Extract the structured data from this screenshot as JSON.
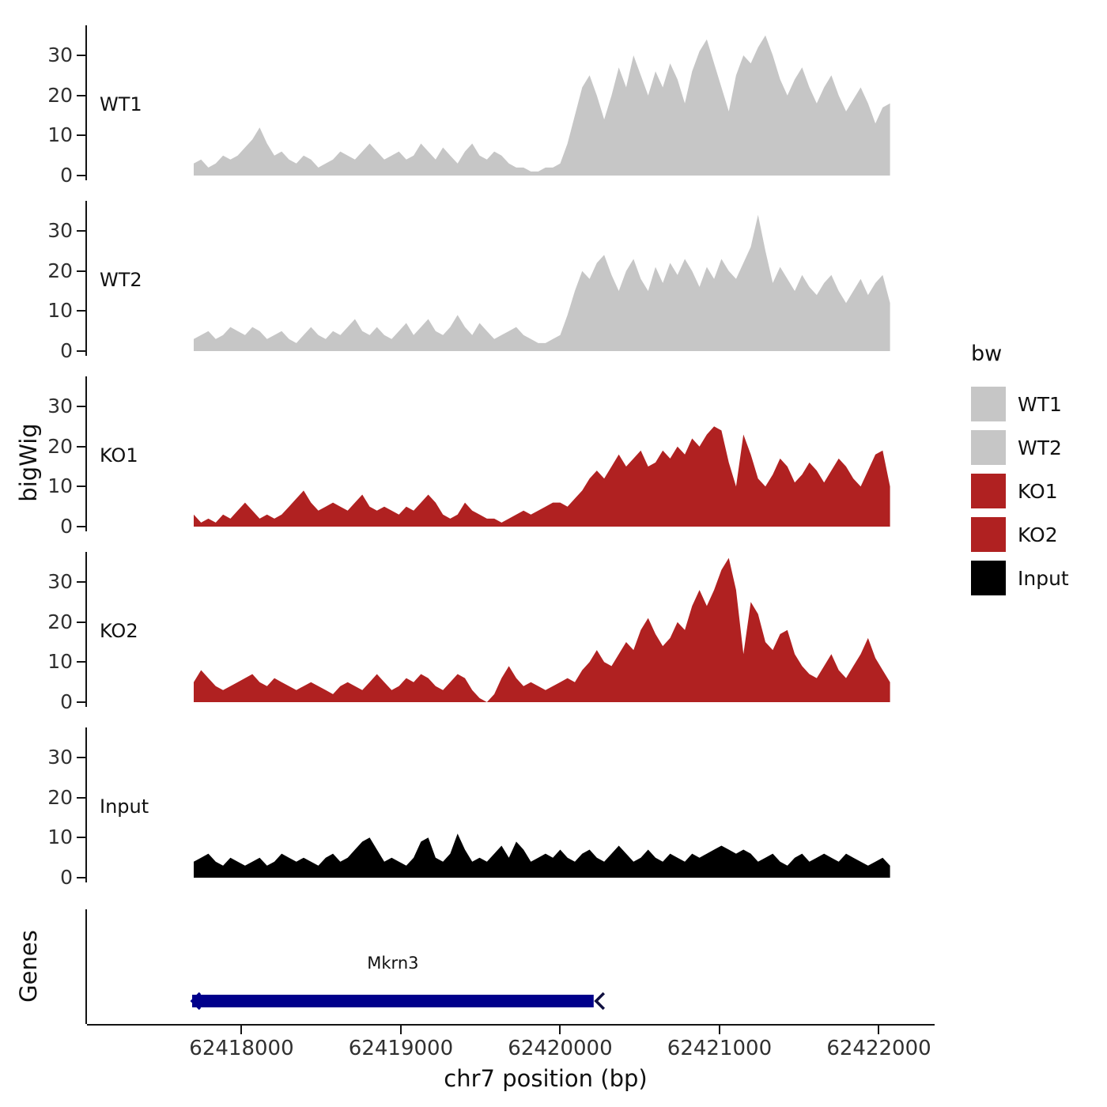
{
  "ylabel_tracks": "bigWig",
  "ylabel_genes": "Genes",
  "xlabel": "chr7 position (bp)",
  "legend": {
    "title": "bw",
    "entries": [
      {
        "label": "WT1",
        "color": "#c6c6c6"
      },
      {
        "label": "WT2",
        "color": "#c6c6c6"
      },
      {
        "label": "KO1",
        "color": "#b02121"
      },
      {
        "label": "KO2",
        "color": "#b02121"
      },
      {
        "label": "Input",
        "color": "#000000"
      }
    ]
  },
  "chart_data": {
    "type": "area",
    "title": "",
    "xlabel": "chr7 position (bp)",
    "ylabel": "bigWig",
    "x_range": [
      62417030,
      62422340
    ],
    "x_ticks": [
      62418000,
      62419000,
      62420000,
      62421000,
      62422000
    ],
    "y_ticks": [
      0,
      10,
      20,
      30
    ],
    "ylim": [
      0,
      36
    ],
    "grid": false,
    "legend_position": "right",
    "tracks": [
      {
        "name": "WT1",
        "color": "#c6c6c6",
        "x_start": 62417700,
        "x_step": 46,
        "y": [
          3,
          4,
          2,
          3,
          5,
          4,
          5,
          7,
          9,
          12,
          8,
          5,
          6,
          4,
          3,
          5,
          4,
          2,
          3,
          4,
          6,
          5,
          4,
          6,
          8,
          6,
          4,
          5,
          6,
          4,
          5,
          8,
          6,
          4,
          7,
          5,
          3,
          6,
          8,
          5,
          4,
          6,
          5,
          3,
          2,
          2,
          1,
          1,
          2,
          2,
          3,
          8,
          15,
          22,
          25,
          20,
          14,
          20,
          27,
          22,
          30,
          25,
          20,
          26,
          22,
          28,
          24,
          18,
          26,
          31,
          34,
          28,
          22,
          16,
          25,
          30,
          28,
          32,
          35,
          30,
          24,
          20,
          24,
          27,
          22,
          18,
          22,
          25,
          20,
          16,
          19,
          22,
          18,
          13,
          17,
          18
        ]
      },
      {
        "name": "WT2",
        "color": "#c6c6c6",
        "x_start": 62417700,
        "x_step": 46,
        "y": [
          3,
          4,
          5,
          3,
          4,
          6,
          5,
          4,
          6,
          5,
          3,
          4,
          5,
          3,
          2,
          4,
          6,
          4,
          3,
          5,
          4,
          6,
          8,
          5,
          4,
          6,
          4,
          3,
          5,
          7,
          4,
          6,
          8,
          5,
          4,
          6,
          9,
          6,
          4,
          7,
          5,
          3,
          4,
          5,
          6,
          4,
          3,
          2,
          2,
          3,
          4,
          9,
          15,
          20,
          18,
          22,
          24,
          19,
          15,
          20,
          23,
          18,
          15,
          21,
          17,
          22,
          19,
          23,
          20,
          16,
          21,
          18,
          23,
          20,
          18,
          22,
          26,
          34,
          25,
          17,
          21,
          18,
          15,
          19,
          16,
          14,
          17,
          19,
          15,
          12,
          15,
          18,
          14,
          17,
          19,
          12
        ]
      },
      {
        "name": "KO1",
        "color": "#b02121",
        "x_start": 62417700,
        "x_step": 46,
        "y": [
          3,
          1,
          2,
          1,
          3,
          2,
          4,
          6,
          4,
          2,
          3,
          2,
          3,
          5,
          7,
          9,
          6,
          4,
          5,
          6,
          5,
          4,
          6,
          8,
          5,
          4,
          5,
          4,
          3,
          5,
          4,
          6,
          8,
          6,
          3,
          2,
          3,
          6,
          4,
          3,
          2,
          2,
          1,
          2,
          3,
          4,
          3,
          4,
          5,
          6,
          6,
          5,
          7,
          9,
          12,
          14,
          12,
          15,
          18,
          15,
          17,
          19,
          15,
          16,
          19,
          17,
          20,
          18,
          22,
          20,
          23,
          25,
          24,
          16,
          10,
          23,
          18,
          12,
          10,
          13,
          17,
          15,
          11,
          13,
          16,
          14,
          11,
          14,
          17,
          15,
          12,
          10,
          14,
          18,
          19,
          10
        ]
      },
      {
        "name": "KO2",
        "color": "#b02121",
        "x_start": 62417700,
        "x_step": 46,
        "y": [
          5,
          8,
          6,
          4,
          3,
          4,
          5,
          6,
          7,
          5,
          4,
          6,
          5,
          4,
          3,
          4,
          5,
          4,
          3,
          2,
          4,
          5,
          4,
          3,
          5,
          7,
          5,
          3,
          4,
          6,
          5,
          7,
          6,
          4,
          3,
          5,
          7,
          6,
          3,
          1,
          0,
          2,
          6,
          9,
          6,
          4,
          5,
          4,
          3,
          4,
          5,
          6,
          5,
          8,
          10,
          13,
          10,
          9,
          12,
          15,
          13,
          18,
          21,
          17,
          14,
          16,
          20,
          18,
          24,
          28,
          24,
          28,
          33,
          36,
          28,
          12,
          25,
          22,
          15,
          13,
          17,
          18,
          12,
          9,
          7,
          6,
          9,
          12,
          8,
          6,
          9,
          12,
          16,
          11,
          8,
          5
        ]
      },
      {
        "name": "Input",
        "color": "#000000",
        "x_start": 62417700,
        "x_step": 46,
        "y": [
          4,
          5,
          6,
          4,
          3,
          5,
          4,
          3,
          4,
          5,
          3,
          4,
          6,
          5,
          4,
          5,
          4,
          3,
          5,
          6,
          4,
          5,
          7,
          9,
          10,
          7,
          4,
          5,
          4,
          3,
          5,
          9,
          10,
          5,
          4,
          6,
          11,
          7,
          4,
          5,
          4,
          6,
          8,
          5,
          9,
          7,
          4,
          5,
          6,
          5,
          7,
          5,
          4,
          6,
          7,
          5,
          4,
          6,
          8,
          6,
          4,
          5,
          7,
          5,
          4,
          6,
          5,
          4,
          6,
          5,
          6,
          7,
          8,
          7,
          6,
          7,
          6,
          4,
          5,
          6,
          4,
          3,
          5,
          6,
          4,
          5,
          6,
          5,
          4,
          6,
          5,
          4,
          3,
          4,
          5,
          3
        ]
      }
    ],
    "genes_panel": {
      "axis_label": "Genes",
      "genes": [
        {
          "name": "Mkrn3",
          "start": 62417690,
          "end": 62420210,
          "strand": "-",
          "color": "#00008b"
        }
      ]
    }
  }
}
